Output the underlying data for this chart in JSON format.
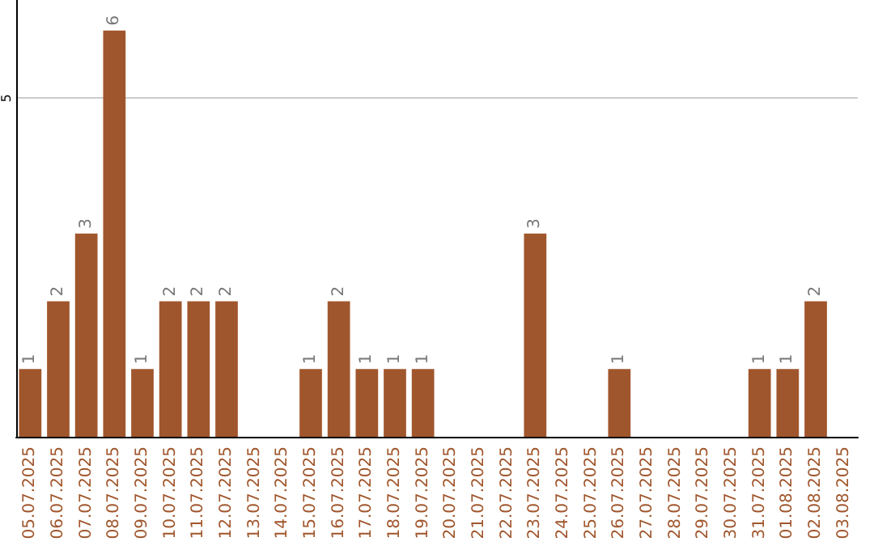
{
  "chart_data": {
    "type": "bar",
    "categories": [
      "05.07.2025",
      "06.07.2025",
      "07.07.2025",
      "08.07.2025",
      "09.07.2025",
      "10.07.2025",
      "11.07.2025",
      "12.07.2025",
      "13.07.2025",
      "14.07.2025",
      "15.07.2025",
      "16.07.2025",
      "17.07.2025",
      "18.07.2025",
      "19.07.2025",
      "20.07.2025",
      "21.07.2025",
      "22.07.2025",
      "23.07.2025",
      "24.07.2025",
      "25.07.2025",
      "26.07.2025",
      "27.07.2025",
      "28.07.2025",
      "29.07.2025",
      "30.07.2025",
      "31.07.2025",
      "01.08.2025",
      "02.08.2025",
      "03.08.2025"
    ],
    "values": [
      1,
      2,
      3,
      6,
      1,
      2,
      2,
      2,
      0,
      0,
      1,
      2,
      1,
      1,
      1,
      0,
      0,
      0,
      3,
      0,
      0,
      1,
      0,
      0,
      0,
      0,
      1,
      1,
      2,
      0
    ],
    "value_labels": [
      "1",
      "2",
      "3",
      "6",
      "1",
      "2",
      "2",
      "2",
      null,
      null,
      "1",
      "2",
      "1",
      "1",
      "1",
      null,
      null,
      null,
      "3",
      null,
      null,
      "1",
      null,
      null,
      null,
      null,
      "1",
      "1",
      "2",
      null
    ],
    "color": "#a0562c",
    "ylim": [
      0,
      6.45
    ],
    "yticks": [
      5
    ],
    "grid": "y"
  }
}
